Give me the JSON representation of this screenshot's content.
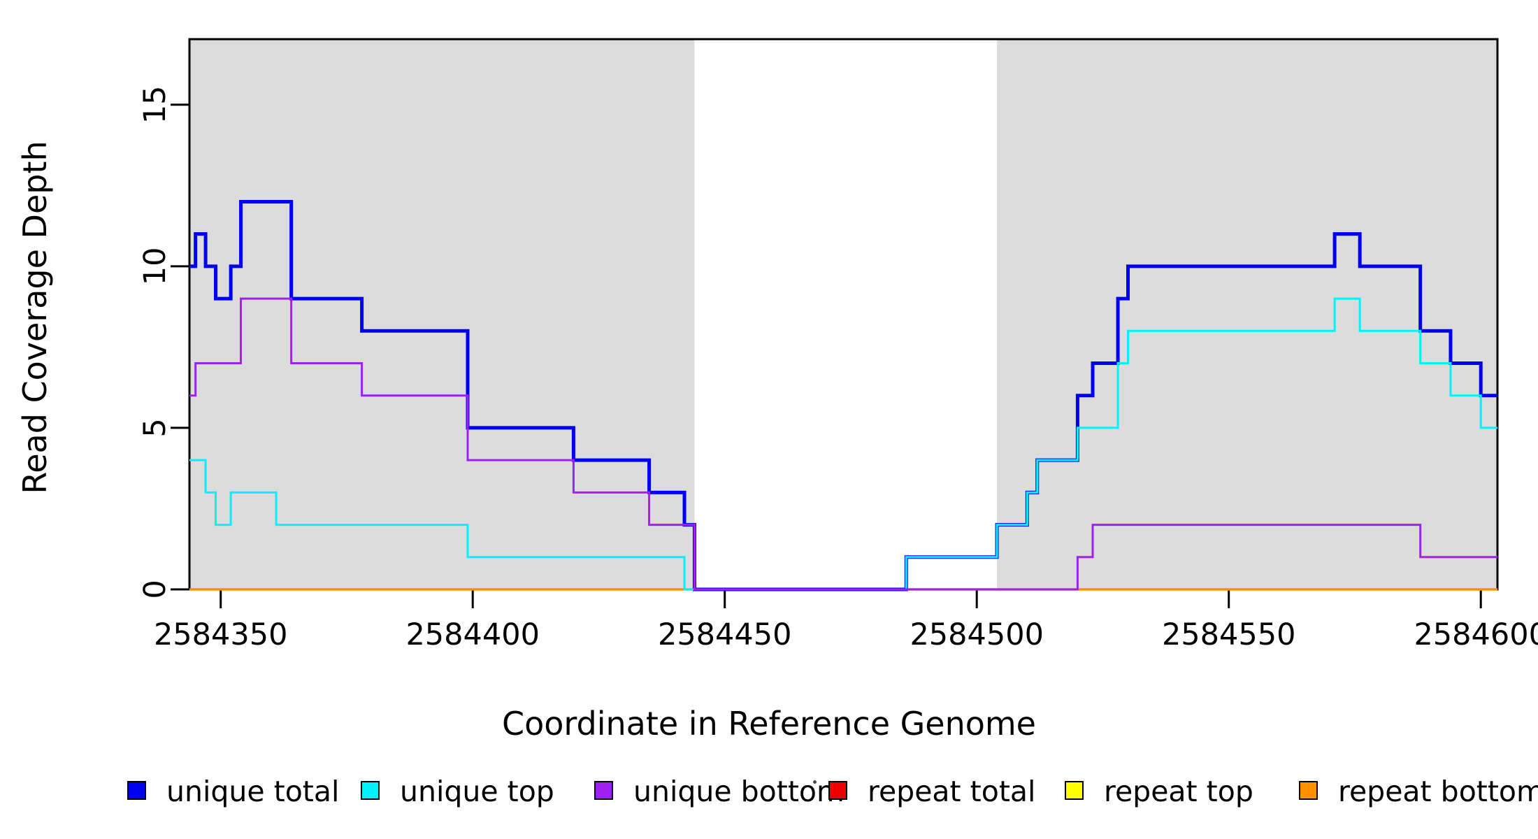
{
  "chart_data": {
    "type": "line",
    "subtype": "step",
    "title": "",
    "xlabel": "Coordinate in Reference Genome",
    "ylabel": "Read Coverage Depth",
    "x_range": [
      2584343.8,
      2584603.3
    ],
    "y_range": [
      0,
      17.03
    ],
    "x_ticks": [
      2584350,
      2584400,
      2584450,
      2584500,
      2584550,
      2584600
    ],
    "y_ticks": [
      0,
      5,
      10,
      15
    ],
    "grid": false,
    "background_color": "#ffffff",
    "shaded_region_color": "#dcdcdc",
    "axis_color": "#000000",
    "shaded_regions": [
      {
        "x0": 2584343.8,
        "x1": 2584444
      },
      {
        "x0": 2584504,
        "x1": 2584603.3
      }
    ],
    "legend_position": "bottom",
    "series": [
      {
        "name": "unique total",
        "color": "#0000f0",
        "line_width": 5,
        "steps": [
          [
            2584343.8,
            10
          ],
          [
            2584345,
            11
          ],
          [
            2584347,
            10
          ],
          [
            2584349,
            9
          ],
          [
            2584352,
            10
          ],
          [
            2584354,
            12
          ],
          [
            2584364,
            9
          ],
          [
            2584378,
            8
          ],
          [
            2584399,
            5
          ],
          [
            2584420,
            4
          ],
          [
            2584435,
            3
          ],
          [
            2584442,
            2
          ],
          [
            2584444,
            0
          ],
          [
            2584486,
            1
          ],
          [
            2584504,
            2
          ],
          [
            2584510,
            3
          ],
          [
            2584512,
            4
          ],
          [
            2584520,
            6
          ],
          [
            2584523,
            7
          ],
          [
            2584528,
            9
          ],
          [
            2584530,
            10
          ],
          [
            2584571,
            11
          ],
          [
            2584576,
            10
          ],
          [
            2584588,
            8
          ],
          [
            2584594,
            7
          ],
          [
            2584600,
            6
          ]
        ]
      },
      {
        "name": "unique top",
        "color": "#00f2ff",
        "line_width": 3,
        "steps": [
          [
            2584343.8,
            4
          ],
          [
            2584347,
            3
          ],
          [
            2584349,
            2
          ],
          [
            2584352,
            3
          ],
          [
            2584361,
            2
          ],
          [
            2584399,
            1
          ],
          [
            2584442,
            0
          ],
          [
            2584486,
            1
          ],
          [
            2584504,
            2
          ],
          [
            2584510,
            3
          ],
          [
            2584512,
            4
          ],
          [
            2584520,
            5
          ],
          [
            2584528,
            7
          ],
          [
            2584530,
            8
          ],
          [
            2584571,
            9
          ],
          [
            2584576,
            8
          ],
          [
            2584588,
            7
          ],
          [
            2584594,
            6
          ],
          [
            2584600,
            5
          ]
        ]
      },
      {
        "name": "unique bottom",
        "color": "#a020f0",
        "line_width": 3,
        "steps": [
          [
            2584343.8,
            6
          ],
          [
            2584345,
            7
          ],
          [
            2584354,
            9
          ],
          [
            2584364,
            7
          ],
          [
            2584378,
            6
          ],
          [
            2584399,
            4
          ],
          [
            2584420,
            3
          ],
          [
            2584435,
            2
          ],
          [
            2584444,
            0
          ],
          [
            2584520,
            1
          ],
          [
            2584523,
            2
          ],
          [
            2584588,
            1
          ]
        ]
      },
      {
        "name": "repeat total",
        "color": "#ee0000",
        "line_width": 3,
        "steps": [
          [
            2584343.8,
            0
          ]
        ]
      },
      {
        "name": "repeat top",
        "color": "#ffff00",
        "line_width": 3,
        "steps": [
          [
            2584343.8,
            0
          ]
        ]
      },
      {
        "name": "repeat bottom",
        "color": "#ff9100",
        "line_width": 3.5,
        "steps": [
          [
            2584343.8,
            0
          ]
        ]
      }
    ],
    "draw_order": [
      3,
      4,
      5,
      0,
      1,
      2
    ]
  },
  "legend": {
    "stray_mark": "·"
  }
}
